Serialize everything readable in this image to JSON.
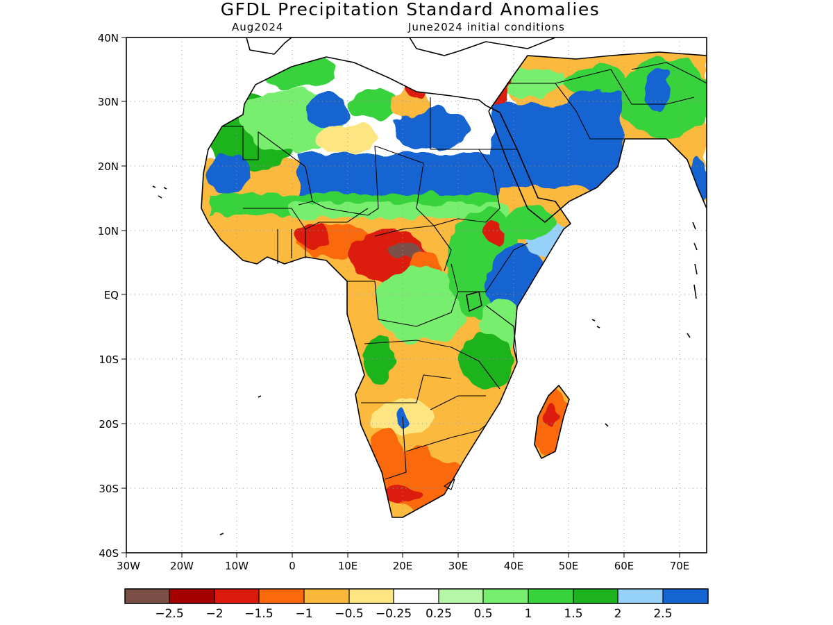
{
  "title": "GFDL Precipitation Standard Anomalies",
  "subtitle_left": "Aug2024",
  "subtitle_right": "June2024 initial conditions",
  "map": {
    "lon_range": [
      -30,
      75
    ],
    "lat_range": [
      -40,
      40
    ],
    "lon_ticks": [
      {
        "value": -30,
        "label": "30W"
      },
      {
        "value": -20,
        "label": "20W"
      },
      {
        "value": -10,
        "label": "10W"
      },
      {
        "value": 0,
        "label": "0"
      },
      {
        "value": 10,
        "label": "10E"
      },
      {
        "value": 20,
        "label": "20E"
      },
      {
        "value": 30,
        "label": "30E"
      },
      {
        "value": 40,
        "label": "40E"
      },
      {
        "value": 50,
        "label": "50E"
      },
      {
        "value": 60,
        "label": "60E"
      },
      {
        "value": 70,
        "label": "70E"
      }
    ],
    "lat_ticks": [
      {
        "value": 40,
        "label": "40N"
      },
      {
        "value": 30,
        "label": "30N"
      },
      {
        "value": 20,
        "label": "20N"
      },
      {
        "value": 10,
        "label": "10N"
      },
      {
        "value": 0,
        "label": "EQ"
      },
      {
        "value": -10,
        "label": "10S"
      },
      {
        "value": -20,
        "label": "20S"
      },
      {
        "value": -30,
        "label": "30S"
      },
      {
        "value": -40,
        "label": "40S"
      }
    ],
    "gridlines": "dotted"
  },
  "colorbar": {
    "colors": [
      "#7b4f46",
      "#a50000",
      "#dc1a0c",
      "#fa6a0c",
      "#fbb93c",
      "#fde682",
      "#ffffff",
      "#b5f7a7",
      "#78ee6e",
      "#37d23c",
      "#1eb31e",
      "#96d1fa",
      "#1464d2"
    ],
    "labels": [
      "−2.5",
      "−2",
      "−1.5",
      "−1",
      "−0.5",
      "−0.25",
      "0.25",
      "0.5",
      "1",
      "1.5",
      "2",
      "2.5"
    ]
  },
  "anomaly_regions": [
    {
      "name": "Sahel band",
      "class": "2.5",
      "color": "#1464d2"
    },
    {
      "name": "Arabian Peninsula",
      "class": "2.5",
      "color": "#1464d2"
    },
    {
      "name": "Central African Republic",
      "class": "-2.5",
      "color": "#7b4f46"
    },
    {
      "name": "Guinea coast",
      "class": "-1",
      "color": "#fa6a0c"
    },
    {
      "name": "Southern Africa",
      "class": "-1",
      "color": "#fa6a0c"
    },
    {
      "name": "Madagascar",
      "class": "-1",
      "color": "#fa6a0c"
    },
    {
      "name": "East Africa",
      "class": "1",
      "color": "#78ee6e"
    }
  ]
}
